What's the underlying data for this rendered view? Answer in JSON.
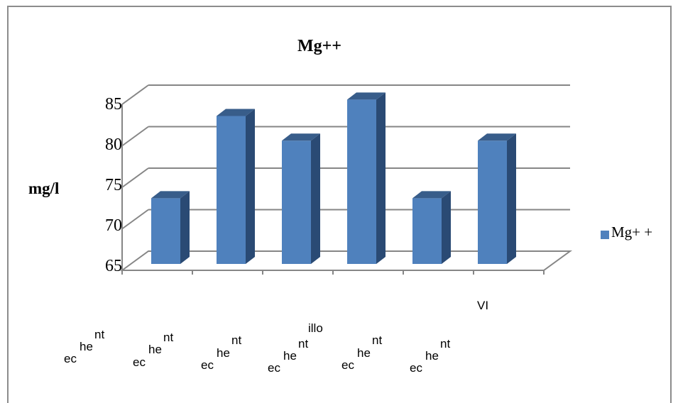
{
  "chart_data": {
    "type": "bar",
    "title": "Mg++",
    "ylabel": "mg/l",
    "xlabel": "",
    "categories": [
      "",
      "",
      "",
      "",
      "",
      ""
    ],
    "series": [
      {
        "name": "Mg+ +",
        "values": [
          73,
          83,
          80,
          85,
          73,
          80
        ]
      }
    ],
    "ylim": [
      65,
      85
    ],
    "y_ticks": [
      "65",
      "70",
      "75",
      "80",
      "85"
    ],
    "grid": true,
    "legend": "right",
    "three_d": true,
    "colors": {
      "bar_front": "#4f81bd",
      "bar_side": "#2a4a74",
      "bar_top": "#385d8a",
      "grid": "#868686"
    }
  },
  "x_axis_label_fragments": {
    "ec": "ec",
    "he": "he",
    "nt": "nt",
    "illo": "illo",
    "vi": "VI"
  }
}
